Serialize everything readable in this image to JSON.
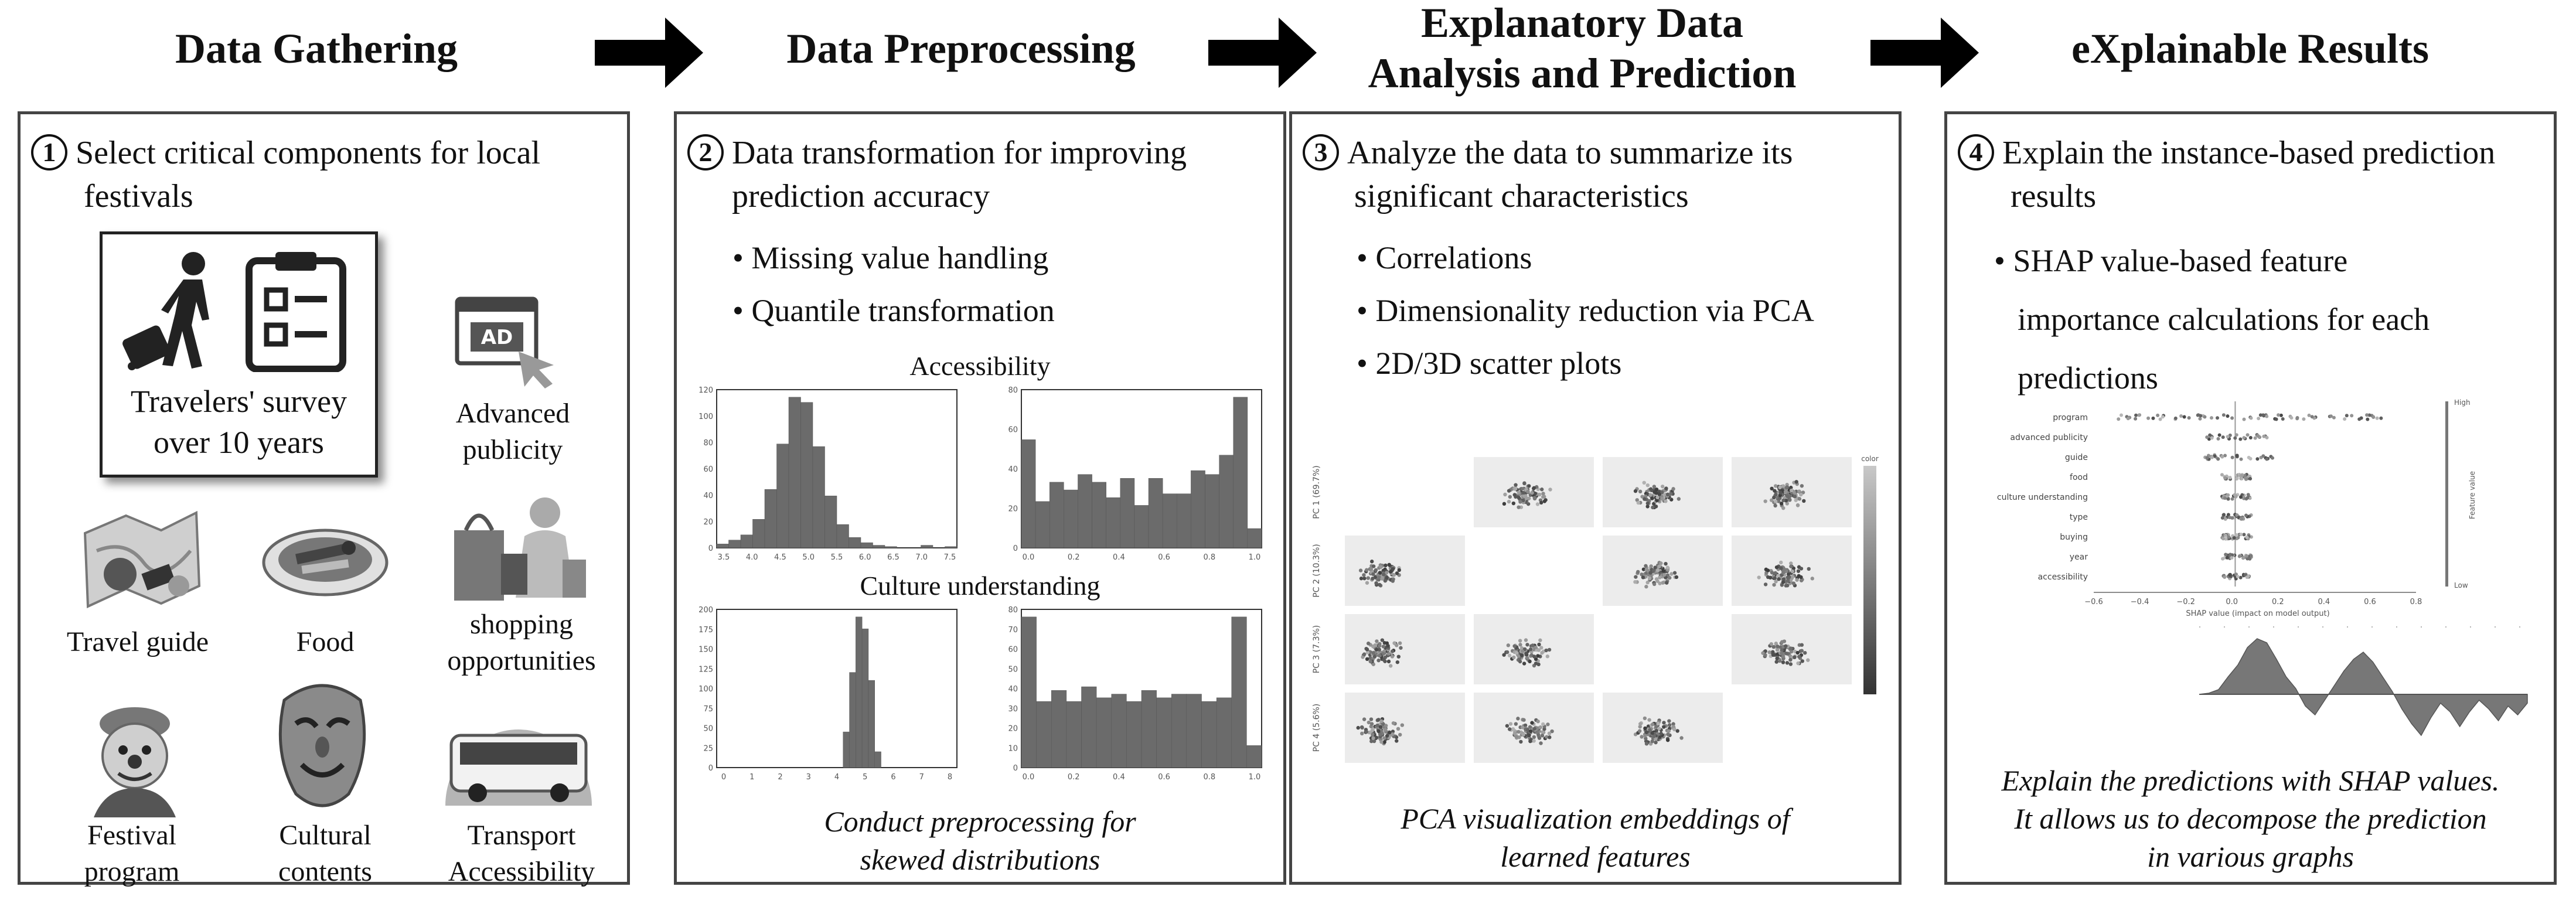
{
  "headers": {
    "gathering": "Data Gathering",
    "preprocessing": "Data Preprocessing",
    "analysis_line1": "Explanatory Data",
    "analysis_line2": "Analysis and Prediction",
    "results": "eXplainable Results"
  },
  "panel1": {
    "num": "1",
    "title_line1": "Select critical components for local",
    "title_line2": "festivals",
    "survey_line1": "Travelers' survey",
    "survey_line2": "over 10 years",
    "ad_icon_text": "AD",
    "items": {
      "publicity_line1": "Advanced",
      "publicity_line2": "publicity",
      "travel_guide": "Travel guide",
      "food": "Food",
      "shopping_line1": "shopping",
      "shopping_line2": "opportunities",
      "program_line1": "Festival",
      "program_line2": "program",
      "cultural_line1": "Cultural",
      "cultural_line2": "contents",
      "transport_line1": "Transport",
      "transport_line2": "Accessibility"
    }
  },
  "panel2": {
    "num": "2",
    "title_line1": "Data transformation for improving",
    "title_line2": "prediction accuracy",
    "bullets": [
      "• Missing value handling",
      "• Quantile transformation"
    ],
    "hist1_title": "Accessibility",
    "hist2_title": "Culture understanding",
    "caption_line1": "Conduct preprocessing for",
    "caption_line2": "skewed distributions",
    "histograms": [
      {
        "id": "access-before",
        "yticks": [
          "120",
          "100",
          "80",
          "60",
          "40",
          "20",
          "0"
        ],
        "xticks": [
          "3.5",
          "4.0",
          "4.5",
          "5.0",
          "5.5",
          "6.0",
          "6.5",
          "7.0",
          "7.5"
        ],
        "values": [
          3,
          6,
          10,
          22,
          45,
          80,
          116,
          112,
          78,
          40,
          18,
          8,
          4,
          2,
          1,
          0,
          0,
          2,
          0,
          1
        ]
      },
      {
        "id": "access-after",
        "yticks": [
          "80",
          "60",
          "40",
          "20",
          "0"
        ],
        "xticks": [
          "0.0",
          "0.2",
          "0.4",
          "0.6",
          "0.8",
          "1.0"
        ],
        "values": [
          56,
          24,
          34,
          30,
          38,
          34,
          26,
          36,
          22,
          36,
          28,
          28,
          40,
          38,
          48,
          78,
          10
        ]
      },
      {
        "id": "culture-before",
        "yticks": [
          "200",
          "175",
          "150",
          "125",
          "100",
          "75",
          "50",
          "25",
          "0"
        ],
        "xticks": [
          "0",
          "1",
          "2",
          "3",
          "4",
          "5",
          "6",
          "7",
          "8"
        ],
        "values": [
          0,
          0,
          0,
          0,
          0,
          0,
          0,
          0,
          0,
          0,
          0,
          0,
          0,
          0,
          0,
          0,
          0,
          0,
          0,
          0,
          45,
          120,
          190,
          175,
          110,
          20,
          0,
          0,
          0,
          0,
          0,
          0,
          0,
          0,
          0,
          0,
          0,
          0
        ]
      },
      {
        "id": "culture-after",
        "yticks": [
          "80",
          "70",
          "60",
          "50",
          "40",
          "30",
          "20",
          "10",
          "0"
        ],
        "xticks": [
          "0.0",
          "0.2",
          "0.4",
          "0.6",
          "0.8",
          "1.0"
        ],
        "values": [
          82,
          36,
          42,
          36,
          44,
          38,
          40,
          36,
          42,
          38,
          40,
          40,
          36,
          38,
          82,
          12
        ]
      }
    ]
  },
  "panel3": {
    "num": "3",
    "title_line1": "Analyze the data to summarize its",
    "title_line2": "significant characteristics",
    "bullets": [
      "• Correlations",
      "• Dimensionality reduction via PCA",
      "• 2D/3D scatter plots"
    ],
    "pca_x_labels": [
      "PC 1 (69.7%)",
      "PC 2 (10.3%)",
      "PC 3 (7.3%)",
      "PC 4 (5.6%)"
    ],
    "pca_y_labels": [
      "PC 1 (69.7%)",
      "PC 2 (10.3%)",
      "PC 3 (7.3%)",
      "PC 4 (5.6%)"
    ],
    "colorbar_label": "color",
    "caption_line1": "PCA visualization embeddings of",
    "caption_line2": "learned features"
  },
  "panel4": {
    "num": "4",
    "title_line1": "Explain the instance-based prediction",
    "title_line2": "results",
    "bullet_line1": "•  SHAP value-based feature",
    "bullet_line2": "importance calculations for each",
    "bullet_line3": "predictions",
    "shap_features": [
      "program",
      "advanced publicity",
      "guide",
      "food",
      "culture understanding",
      "type",
      "buying",
      "year",
      "accessibility"
    ],
    "shap_xticks": [
      "−0.6",
      "−0.4",
      "−0.2",
      "0.0",
      "0.2",
      "0.4",
      "0.6",
      "0.8"
    ],
    "shap_xlabel": "SHAP value (impact on model output)",
    "shap_high": "High",
    "shap_low": "Low",
    "shap_feature_value": "Feature value",
    "caption_line1": "Explain the predictions with SHAP values.",
    "caption_line2": "It allows us to decompose the prediction",
    "caption_line3": "in various graphs"
  },
  "colors": {
    "panel_border": "#444444",
    "arrow": "#000000",
    "bar": "#6b6b6b",
    "icon": "#222222"
  }
}
